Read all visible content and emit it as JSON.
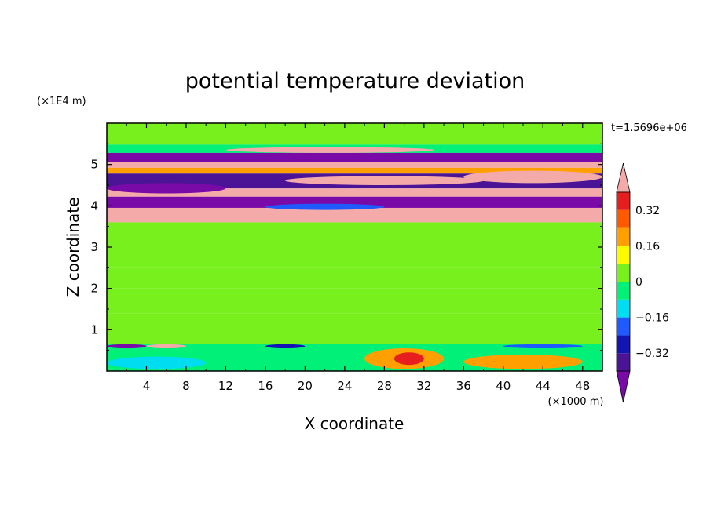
{
  "chart_data": {
    "type": "heatmap",
    "title": "potential temperature deviation",
    "time_label": "t=1.5696e+06",
    "xlabel": "X coordinate",
    "ylabel": "Z coordinate",
    "x_unit": "(×1000 m)",
    "y_unit": "(×1E4 m)",
    "xlim": [
      0,
      50
    ],
    "ylim": [
      0,
      6
    ],
    "x_ticks": [
      "4",
      "8",
      "12",
      "16",
      "20",
      "24",
      "28",
      "32",
      "36",
      "40",
      "44",
      "48"
    ],
    "y_ticks": [
      "1",
      "2",
      "3",
      "4",
      "5"
    ],
    "x_tick_values": [
      4,
      8,
      12,
      16,
      20,
      24,
      28,
      32,
      36,
      40,
      44,
      48
    ],
    "y_tick_values": [
      1,
      2,
      3,
      4,
      5
    ],
    "colorbar": {
      "labels": [
        "0.32",
        "0.16",
        "0",
        "−0.16",
        "−0.32"
      ],
      "label_values": [
        0.32,
        0.16,
        0,
        -0.16,
        -0.32
      ],
      "min": -0.48,
      "max": 0.48,
      "colors": [
        "#7a0aa8",
        "#4b1496",
        "#1414b4",
        "#1e5aff",
        "#00dcf0",
        "#00f078",
        "#78f01e",
        "#fafa00",
        "#ffa000",
        "#ff5a00",
        "#e61e1e",
        "#f4aaa8"
      ]
    },
    "bands": [
      {
        "y": [
          5.48,
          6.0
        ],
        "value": 0.0
      },
      {
        "y": [
          5.28,
          5.48
        ],
        "value": -0.08
      },
      {
        "y": [
          5.05,
          5.28
        ],
        "value": -0.48
      },
      {
        "y": [
          4.92,
          5.05
        ],
        "value": 0.48
      },
      {
        "y": [
          4.78,
          4.92
        ],
        "value": 0.2
      },
      {
        "y": [
          4.42,
          4.78
        ],
        "value": -0.36
      },
      {
        "y": [
          4.22,
          4.42
        ],
        "value": 0.48
      },
      {
        "y": [
          3.95,
          4.22
        ],
        "value": -0.48
      },
      {
        "y": [
          3.6,
          3.95
        ],
        "value": 0.48
      },
      {
        "y": [
          2.5,
          3.6
        ],
        "value": 0.0
      },
      {
        "y": [
          2.0,
          2.5
        ],
        "value": 0.04
      },
      {
        "y": [
          1.4,
          2.0
        ],
        "value": 0.06
      },
      {
        "y": [
          0.65,
          1.4
        ],
        "value": 0.03
      },
      {
        "y": [
          0.0,
          0.65
        ],
        "value": -0.08
      }
    ],
    "features": [
      {
        "x": [
          12,
          33
        ],
        "y": [
          5.28,
          5.42
        ],
        "value": 0.48
      },
      {
        "x": [
          36,
          50
        ],
        "y": [
          4.55,
          4.85
        ],
        "value": 0.48
      },
      {
        "x": [
          18,
          38
        ],
        "y": [
          4.5,
          4.72
        ],
        "value": 0.48
      },
      {
        "x": [
          0,
          12
        ],
        "y": [
          4.3,
          4.55
        ],
        "value": -0.48
      },
      {
        "x": [
          10,
          22
        ],
        "y": [
          3.78,
          3.95
        ],
        "value": 0.48
      },
      {
        "x": [
          16,
          28
        ],
        "y": [
          3.9,
          4.05
        ],
        "value": -0.24
      },
      {
        "x": [
          26,
          34
        ],
        "y": [
          0.05,
          0.55
        ],
        "value": 0.2
      },
      {
        "x": [
          29,
          32
        ],
        "y": [
          0.15,
          0.45
        ],
        "value": 0.32
      },
      {
        "x": [
          36,
          48
        ],
        "y": [
          0.05,
          0.4
        ],
        "value": 0.16
      },
      {
        "x": [
          4,
          8
        ],
        "y": [
          0.55,
          0.65
        ],
        "value": 0.48
      },
      {
        "x": [
          0,
          4
        ],
        "y": [
          0.55,
          0.65
        ],
        "value": -0.4
      },
      {
        "x": [
          16,
          20
        ],
        "y": [
          0.55,
          0.65
        ],
        "value": -0.32
      },
      {
        "x": [
          40,
          48
        ],
        "y": [
          0.55,
          0.65
        ],
        "value": -0.24
      },
      {
        "x": [
          0,
          10
        ],
        "y": [
          0.05,
          0.35
        ],
        "value": -0.12
      }
    ]
  }
}
